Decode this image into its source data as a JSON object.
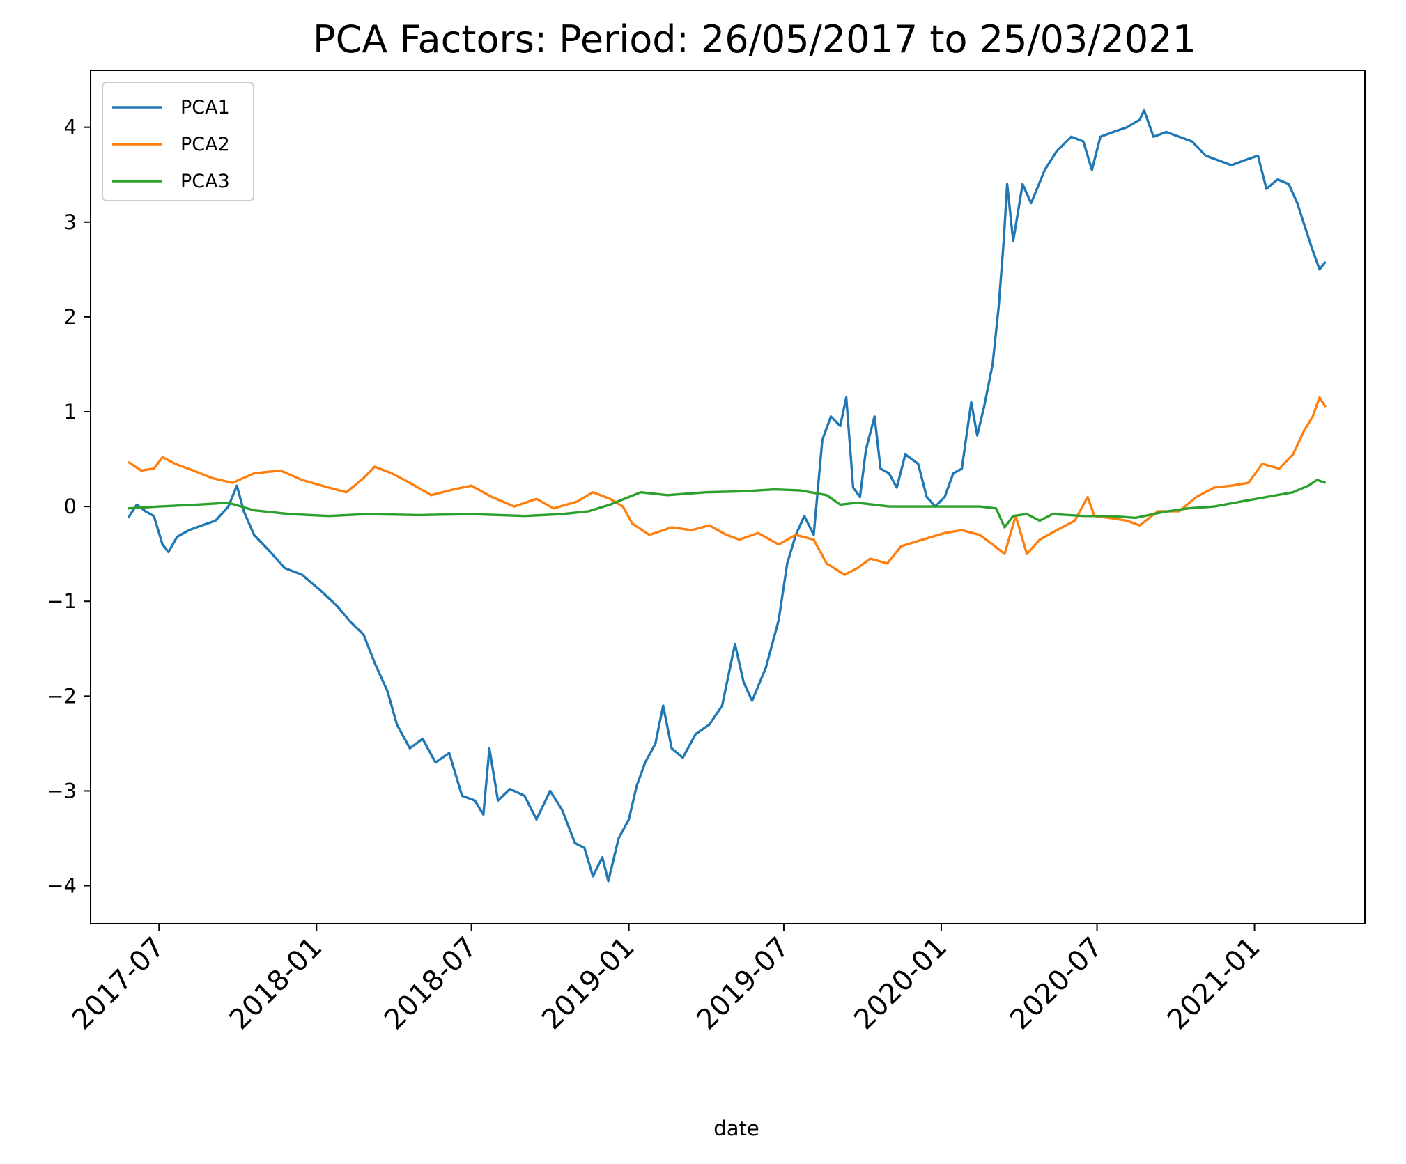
{
  "chart_data": {
    "type": "line",
    "title": "PCA Factors: Period: 26/05/2017 to 25/03/2021",
    "xlabel": "date",
    "ylabel": "",
    "xlim": [
      "2017-04-12",
      "2021-05-10"
    ],
    "ylim": [
      -4.4,
      4.6
    ],
    "y_ticks": [
      -4,
      -3,
      -2,
      -1,
      0,
      1,
      2,
      3,
      4
    ],
    "y_tick_labels": [
      "−4",
      "−3",
      "−2",
      "−1",
      "0",
      "1",
      "2",
      "3",
      "4"
    ],
    "x_ticks": [
      "2017-07-01",
      "2018-01-01",
      "2018-07-01",
      "2019-01-01",
      "2019-07-01",
      "2020-01-01",
      "2020-07-01",
      "2021-01-01"
    ],
    "x_tick_labels": [
      "2017-07",
      "2018-01",
      "2018-07",
      "2019-01",
      "2019-07",
      "2020-01",
      "2020-07",
      "2021-01"
    ],
    "grid": false,
    "legend_position": "top-left",
    "series": [
      {
        "name": "PCA1",
        "color": "#1f77b4",
        "points": [
          [
            "2017-05-26",
            -0.12
          ],
          [
            "2017-06-05",
            0.02
          ],
          [
            "2017-06-15",
            -0.05
          ],
          [
            "2017-06-25",
            -0.1
          ],
          [
            "2017-07-05",
            -0.4
          ],
          [
            "2017-07-12",
            -0.48
          ],
          [
            "2017-07-22",
            -0.32
          ],
          [
            "2017-08-05",
            -0.25
          ],
          [
            "2017-08-20",
            -0.2
          ],
          [
            "2017-09-05",
            -0.15
          ],
          [
            "2017-09-20",
            0.0
          ],
          [
            "2017-09-30",
            0.22
          ],
          [
            "2017-10-08",
            -0.05
          ],
          [
            "2017-10-20",
            -0.3
          ],
          [
            "2017-11-05",
            -0.45
          ],
          [
            "2017-11-25",
            -0.65
          ],
          [
            "2017-12-15",
            -0.72
          ],
          [
            "2018-01-05",
            -0.88
          ],
          [
            "2018-01-25",
            -1.05
          ],
          [
            "2018-02-10",
            -1.22
          ],
          [
            "2018-02-25",
            -1.35
          ],
          [
            "2018-03-10",
            -1.65
          ],
          [
            "2018-03-25",
            -1.95
          ],
          [
            "2018-04-05",
            -2.3
          ],
          [
            "2018-04-20",
            -2.55
          ],
          [
            "2018-05-05",
            -2.45
          ],
          [
            "2018-05-20",
            -2.7
          ],
          [
            "2018-06-05",
            -2.6
          ],
          [
            "2018-06-20",
            -3.05
          ],
          [
            "2018-07-05",
            -3.1
          ],
          [
            "2018-07-15",
            -3.25
          ],
          [
            "2018-07-22",
            -2.55
          ],
          [
            "2018-08-01",
            -3.1
          ],
          [
            "2018-08-15",
            -2.98
          ],
          [
            "2018-09-01",
            -3.05
          ],
          [
            "2018-09-15",
            -3.3
          ],
          [
            "2018-10-01",
            -3.0
          ],
          [
            "2018-10-15",
            -3.2
          ],
          [
            "2018-10-30",
            -3.55
          ],
          [
            "2018-11-10",
            -3.6
          ],
          [
            "2018-11-20",
            -3.9
          ],
          [
            "2018-12-01",
            -3.7
          ],
          [
            "2018-12-08",
            -3.95
          ],
          [
            "2018-12-20",
            -3.5
          ],
          [
            "2019-01-01",
            -3.3
          ],
          [
            "2019-01-10",
            -2.95
          ],
          [
            "2019-01-20",
            -2.7
          ],
          [
            "2019-02-01",
            -2.5
          ],
          [
            "2019-02-10",
            -2.1
          ],
          [
            "2019-02-20",
            -2.55
          ],
          [
            "2019-03-05",
            -2.65
          ],
          [
            "2019-03-20",
            -2.4
          ],
          [
            "2019-04-05",
            -2.3
          ],
          [
            "2019-04-20",
            -2.1
          ],
          [
            "2019-05-05",
            -1.45
          ],
          [
            "2019-05-15",
            -1.85
          ],
          [
            "2019-05-25",
            -2.05
          ],
          [
            "2019-06-10",
            -1.7
          ],
          [
            "2019-06-25",
            -1.2
          ],
          [
            "2019-07-05",
            -0.6
          ],
          [
            "2019-07-15",
            -0.3
          ],
          [
            "2019-07-25",
            -0.1
          ],
          [
            "2019-08-05",
            -0.3
          ],
          [
            "2019-08-15",
            0.7
          ],
          [
            "2019-08-25",
            0.95
          ],
          [
            "2019-09-05",
            0.85
          ],
          [
            "2019-09-12",
            1.15
          ],
          [
            "2019-09-20",
            0.2
          ],
          [
            "2019-09-28",
            0.1
          ],
          [
            "2019-10-05",
            0.6
          ],
          [
            "2019-10-15",
            0.95
          ],
          [
            "2019-10-22",
            0.4
          ],
          [
            "2019-11-01",
            0.35
          ],
          [
            "2019-11-10",
            0.2
          ],
          [
            "2019-11-20",
            0.55
          ],
          [
            "2019-12-05",
            0.45
          ],
          [
            "2019-12-15",
            0.1
          ],
          [
            "2019-12-25",
            0.0
          ],
          [
            "2020-01-05",
            0.1
          ],
          [
            "2020-01-15",
            0.35
          ],
          [
            "2020-01-25",
            0.4
          ],
          [
            "2020-02-05",
            1.1
          ],
          [
            "2020-02-12",
            0.75
          ],
          [
            "2020-02-20",
            1.05
          ],
          [
            "2020-03-01",
            1.5
          ],
          [
            "2020-03-08",
            2.1
          ],
          [
            "2020-03-14",
            2.8
          ],
          [
            "2020-03-18",
            3.4
          ],
          [
            "2020-03-25",
            2.8
          ],
          [
            "2020-04-05",
            3.4
          ],
          [
            "2020-04-15",
            3.2
          ],
          [
            "2020-05-01",
            3.55
          ],
          [
            "2020-05-15",
            3.75
          ],
          [
            "2020-06-01",
            3.9
          ],
          [
            "2020-06-15",
            3.85
          ],
          [
            "2020-06-25",
            3.55
          ],
          [
            "2020-07-05",
            3.9
          ],
          [
            "2020-07-20",
            3.95
          ],
          [
            "2020-08-05",
            4.0
          ],
          [
            "2020-08-20",
            4.08
          ],
          [
            "2020-08-25",
            4.18
          ],
          [
            "2020-09-05",
            3.9
          ],
          [
            "2020-09-20",
            3.95
          ],
          [
            "2020-10-05",
            3.9
          ],
          [
            "2020-10-20",
            3.85
          ],
          [
            "2020-11-05",
            3.7
          ],
          [
            "2020-11-20",
            3.65
          ],
          [
            "2020-12-05",
            3.6
          ],
          [
            "2020-12-20",
            3.65
          ],
          [
            "2021-01-05",
            3.7
          ],
          [
            "2021-01-15",
            3.35
          ],
          [
            "2021-01-28",
            3.45
          ],
          [
            "2021-02-10",
            3.4
          ],
          [
            "2021-02-20",
            3.2
          ],
          [
            "2021-03-01",
            2.95
          ],
          [
            "2021-03-10",
            2.7
          ],
          [
            "2021-03-18",
            2.5
          ],
          [
            "2021-03-25",
            2.58
          ]
        ]
      },
      {
        "name": "PCA2",
        "color": "#ff7f0e",
        "points": [
          [
            "2017-05-26",
            0.47
          ],
          [
            "2017-06-10",
            0.38
          ],
          [
            "2017-06-25",
            0.4
          ],
          [
            "2017-07-05",
            0.52
          ],
          [
            "2017-07-20",
            0.45
          ],
          [
            "2017-08-10",
            0.38
          ],
          [
            "2017-09-01",
            0.3
          ],
          [
            "2017-09-25",
            0.25
          ],
          [
            "2017-10-20",
            0.35
          ],
          [
            "2017-11-20",
            0.38
          ],
          [
            "2017-12-15",
            0.28
          ],
          [
            "2018-01-15",
            0.2
          ],
          [
            "2018-02-05",
            0.15
          ],
          [
            "2018-02-25",
            0.3
          ],
          [
            "2018-03-10",
            0.42
          ],
          [
            "2018-03-30",
            0.35
          ],
          [
            "2018-04-20",
            0.25
          ],
          [
            "2018-05-15",
            0.12
          ],
          [
            "2018-06-10",
            0.18
          ],
          [
            "2018-07-01",
            0.22
          ],
          [
            "2018-07-25",
            0.1
          ],
          [
            "2018-08-20",
            0.0
          ],
          [
            "2018-09-15",
            0.08
          ],
          [
            "2018-10-05",
            -0.02
          ],
          [
            "2018-11-01",
            0.05
          ],
          [
            "2018-11-20",
            0.15
          ],
          [
            "2018-12-10",
            0.08
          ],
          [
            "2018-12-25",
            0.0
          ],
          [
            "2019-01-05",
            -0.18
          ],
          [
            "2019-01-25",
            -0.3
          ],
          [
            "2019-02-20",
            -0.22
          ],
          [
            "2019-03-15",
            -0.25
          ],
          [
            "2019-04-05",
            -0.2
          ],
          [
            "2019-04-25",
            -0.3
          ],
          [
            "2019-05-10",
            -0.35
          ],
          [
            "2019-06-01",
            -0.28
          ],
          [
            "2019-06-25",
            -0.4
          ],
          [
            "2019-07-15",
            -0.3
          ],
          [
            "2019-08-05",
            -0.35
          ],
          [
            "2019-08-20",
            -0.6
          ],
          [
            "2019-09-10",
            -0.72
          ],
          [
            "2019-09-25",
            -0.65
          ],
          [
            "2019-10-10",
            -0.55
          ],
          [
            "2019-10-30",
            -0.6
          ],
          [
            "2019-11-15",
            -0.42
          ],
          [
            "2019-12-10",
            -0.35
          ],
          [
            "2020-01-05",
            -0.28
          ],
          [
            "2020-01-25",
            -0.25
          ],
          [
            "2020-02-15",
            -0.3
          ],
          [
            "2020-03-01",
            -0.4
          ],
          [
            "2020-03-15",
            -0.5
          ],
          [
            "2020-03-28",
            -0.1
          ],
          [
            "2020-04-10",
            -0.5
          ],
          [
            "2020-04-25",
            -0.35
          ],
          [
            "2020-05-15",
            -0.25
          ],
          [
            "2020-06-05",
            -0.15
          ],
          [
            "2020-06-20",
            0.1
          ],
          [
            "2020-06-28",
            -0.1
          ],
          [
            "2020-07-15",
            -0.12
          ],
          [
            "2020-08-05",
            -0.15
          ],
          [
            "2020-08-20",
            -0.2
          ],
          [
            "2020-09-10",
            -0.05
          ],
          [
            "2020-10-05",
            -0.05
          ],
          [
            "2020-10-25",
            0.1
          ],
          [
            "2020-11-15",
            0.2
          ],
          [
            "2020-12-05",
            0.22
          ],
          [
            "2020-12-25",
            0.25
          ],
          [
            "2021-01-10",
            0.45
          ],
          [
            "2021-01-30",
            0.4
          ],
          [
            "2021-02-15",
            0.55
          ],
          [
            "2021-02-28",
            0.8
          ],
          [
            "2021-03-10",
            0.95
          ],
          [
            "2021-03-18",
            1.15
          ],
          [
            "2021-03-25",
            1.05
          ]
        ]
      },
      {
        "name": "PCA3",
        "color": "#2ca02c",
        "points": [
          [
            "2017-05-26",
            -0.02
          ],
          [
            "2017-07-01",
            0.0
          ],
          [
            "2017-08-15",
            0.02
          ],
          [
            "2017-09-20",
            0.04
          ],
          [
            "2017-10-20",
            -0.04
          ],
          [
            "2017-12-01",
            -0.08
          ],
          [
            "2018-01-15",
            -0.1
          ],
          [
            "2018-03-01",
            -0.08
          ],
          [
            "2018-05-01",
            -0.09
          ],
          [
            "2018-07-01",
            -0.08
          ],
          [
            "2018-09-01",
            -0.1
          ],
          [
            "2018-10-15",
            -0.08
          ],
          [
            "2018-11-15",
            -0.05
          ],
          [
            "2018-12-10",
            0.02
          ],
          [
            "2019-01-01",
            0.1
          ],
          [
            "2019-01-15",
            0.15
          ],
          [
            "2019-02-15",
            0.12
          ],
          [
            "2019-04-01",
            0.15
          ],
          [
            "2019-05-15",
            0.16
          ],
          [
            "2019-06-20",
            0.18
          ],
          [
            "2019-07-20",
            0.17
          ],
          [
            "2019-08-20",
            0.12
          ],
          [
            "2019-09-05",
            0.02
          ],
          [
            "2019-09-25",
            0.04
          ],
          [
            "2019-11-01",
            0.0
          ],
          [
            "2020-01-01",
            0.0
          ],
          [
            "2020-02-15",
            0.0
          ],
          [
            "2020-03-05",
            -0.02
          ],
          [
            "2020-03-15",
            -0.22
          ],
          [
            "2020-03-25",
            -0.1
          ],
          [
            "2020-04-10",
            -0.08
          ],
          [
            "2020-04-25",
            -0.15
          ],
          [
            "2020-05-10",
            -0.08
          ],
          [
            "2020-06-15",
            -0.1
          ],
          [
            "2020-07-15",
            -0.1
          ],
          [
            "2020-08-15",
            -0.12
          ],
          [
            "2020-09-15",
            -0.06
          ],
          [
            "2020-10-15",
            -0.02
          ],
          [
            "2020-11-15",
            0.0
          ],
          [
            "2020-12-15",
            0.05
          ],
          [
            "2021-01-15",
            0.1
          ],
          [
            "2021-02-15",
            0.15
          ],
          [
            "2021-03-05",
            0.22
          ],
          [
            "2021-03-15",
            0.28
          ],
          [
            "2021-03-25",
            0.25
          ]
        ]
      }
    ]
  }
}
